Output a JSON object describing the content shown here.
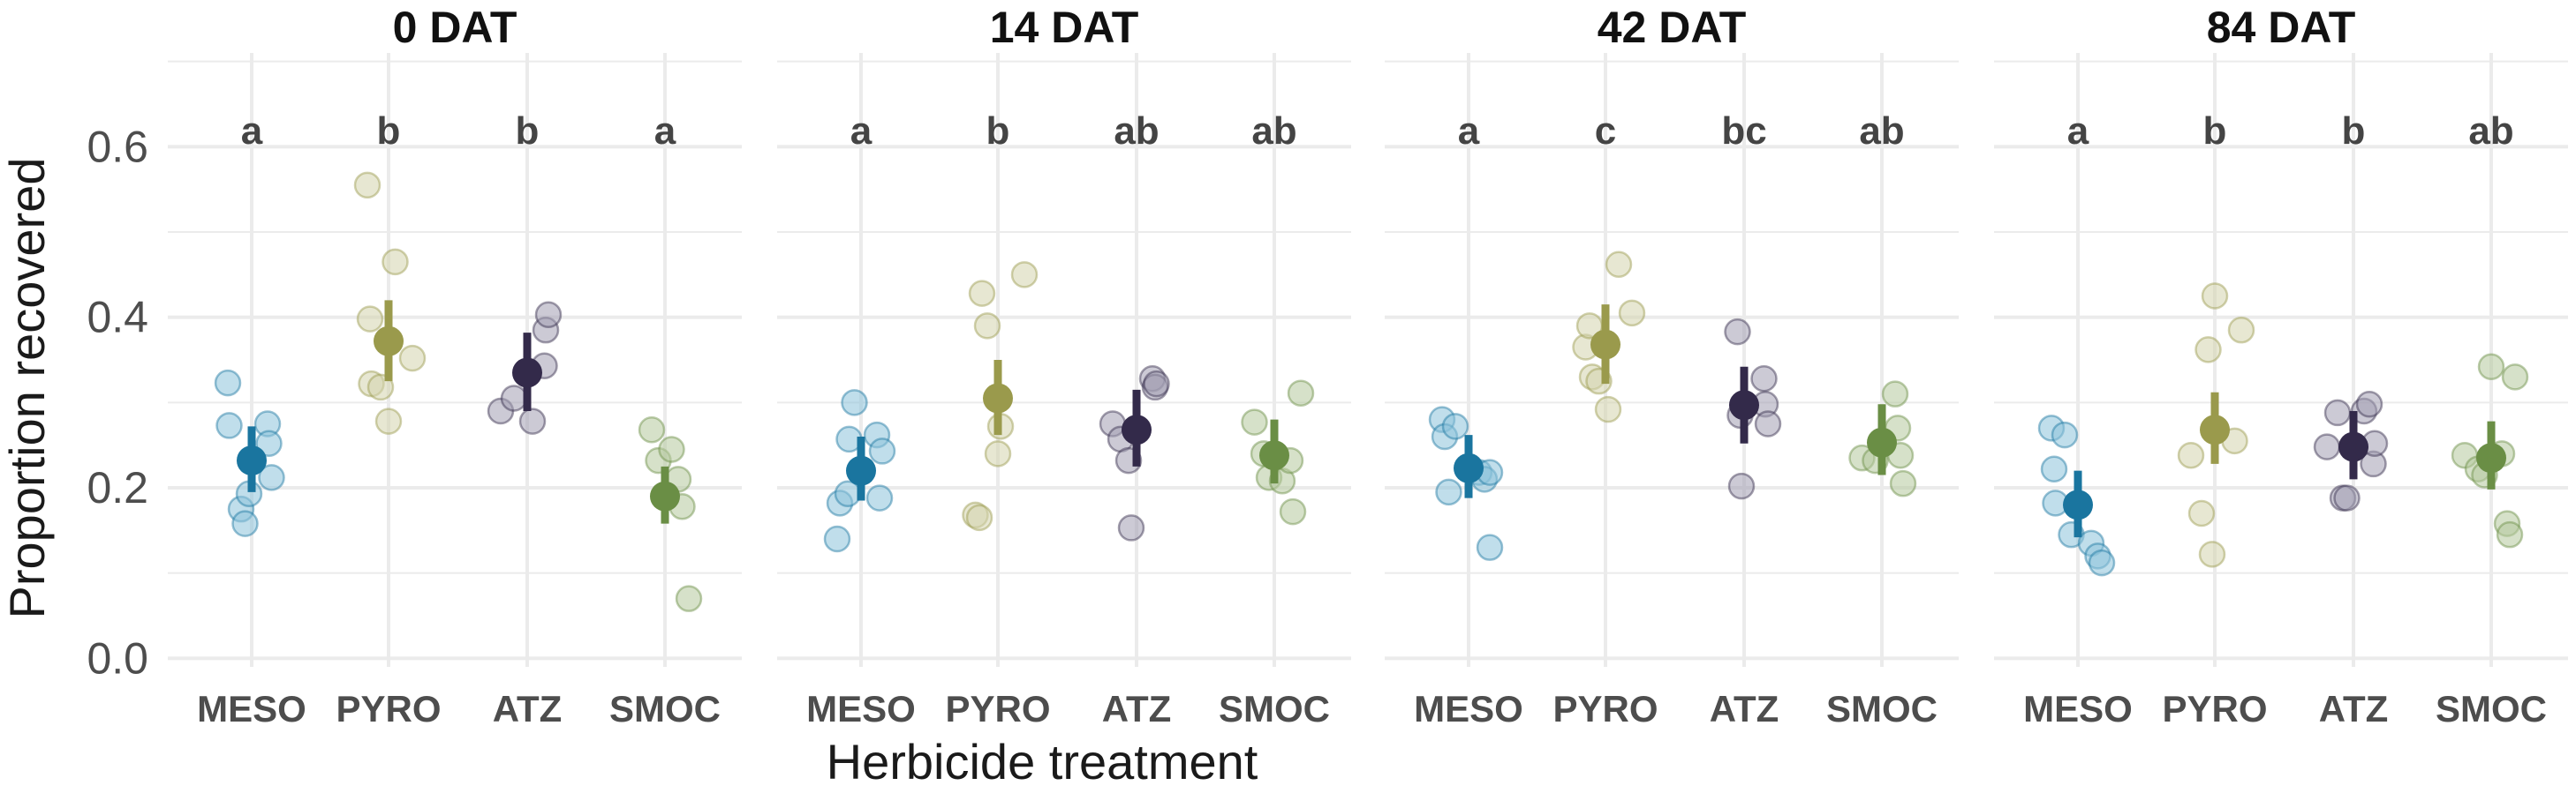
{
  "chart_data": {
    "type": "scatter",
    "subtype": "jittered points with mean and error bars, faceted",
    "ylabel": "Proportion recovered",
    "xlabel": "Herbicide treatment",
    "ylim": [
      -0.01,
      0.71
    ],
    "yticks": [
      0.0,
      0.2,
      0.4,
      0.6
    ],
    "ytick_labels": [
      "0.0",
      "0.2",
      "0.4",
      "0.6"
    ],
    "grid": true,
    "categories": [
      "MESO",
      "PYRO",
      "ATZ",
      "SMOC"
    ],
    "colors": {
      "MESO": "#1a759f",
      "PYRO": "#9a9a4c",
      "ATZ": "#332a4a",
      "SMOC": "#6a8e45"
    },
    "point_colors": {
      "MESO": "#8dc2db",
      "PYRO": "#d3d3ad",
      "ATZ": "#a39fb3",
      "SMOC": "#b5c99c"
    },
    "facets": [
      {
        "title": "0 DAT",
        "groups": [
          {
            "category": "MESO",
            "letter": "a",
            "mean": 0.232,
            "low": 0.195,
            "high": 0.272,
            "points": [
              [
                -0.18,
                0.323
              ],
              [
                -0.17,
                0.273
              ],
              [
                -0.08,
                0.175
              ],
              [
                -0.05,
                0.158
              ],
              [
                -0.02,
                0.193
              ],
              [
                0.12,
                0.275
              ],
              [
                0.13,
                0.252
              ],
              [
                0.15,
                0.212
              ]
            ]
          },
          {
            "category": "PYRO",
            "letter": "b",
            "mean": 0.372,
            "low": 0.325,
            "high": 0.42,
            "points": [
              [
                -0.16,
                0.555
              ],
              [
                -0.14,
                0.398
              ],
              [
                -0.13,
                0.322
              ],
              [
                -0.06,
                0.318
              ],
              [
                0.0,
                0.278
              ],
              [
                0.05,
                0.465
              ],
              [
                0.18,
                0.352
              ]
            ]
          },
          {
            "category": "ATZ",
            "letter": "b",
            "mean": 0.335,
            "low": 0.29,
            "high": 0.382,
            "points": [
              [
                -0.2,
                0.29
              ],
              [
                -0.1,
                0.305
              ],
              [
                0.04,
                0.278
              ],
              [
                0.13,
                0.343
              ],
              [
                0.14,
                0.385
              ],
              [
                0.16,
                0.403
              ]
            ]
          },
          {
            "category": "SMOC",
            "letter": "a",
            "mean": 0.19,
            "low": 0.158,
            "high": 0.225,
            "points": [
              [
                -0.1,
                0.268
              ],
              [
                -0.05,
                0.232
              ],
              [
                0.05,
                0.245
              ],
              [
                0.1,
                0.21
              ],
              [
                0.13,
                0.178
              ],
              [
                0.18,
                0.07
              ]
            ]
          }
        ]
      },
      {
        "title": "14 DAT",
        "groups": [
          {
            "category": "MESO",
            "letter": "a",
            "mean": 0.22,
            "low": 0.185,
            "high": 0.26,
            "points": [
              [
                -0.18,
                0.14
              ],
              [
                -0.16,
                0.182
              ],
              [
                -0.1,
                0.193
              ],
              [
                -0.09,
                0.257
              ],
              [
                -0.05,
                0.3
              ],
              [
                0.12,
                0.262
              ],
              [
                0.14,
                0.188
              ],
              [
                0.16,
                0.243
              ]
            ]
          },
          {
            "category": "PYRO",
            "letter": "b",
            "mean": 0.305,
            "low": 0.262,
            "high": 0.35,
            "points": [
              [
                -0.17,
                0.168
              ],
              [
                -0.14,
                0.165
              ],
              [
                -0.12,
                0.428
              ],
              [
                -0.08,
                0.39
              ],
              [
                0.0,
                0.24
              ],
              [
                0.02,
                0.272
              ],
              [
                0.2,
                0.45
              ]
            ]
          },
          {
            "category": "ATZ",
            "letter": "ab",
            "mean": 0.268,
            "low": 0.225,
            "high": 0.315,
            "points": [
              [
                -0.18,
                0.275
              ],
              [
                -0.12,
                0.257
              ],
              [
                -0.06,
                0.232
              ],
              [
                -0.04,
                0.153
              ],
              [
                0.12,
                0.328
              ],
              [
                0.14,
                0.318
              ],
              [
                0.15,
                0.322
              ]
            ]
          },
          {
            "category": "SMOC",
            "letter": "ab",
            "mean": 0.238,
            "low": 0.205,
            "high": 0.28,
            "points": [
              [
                -0.15,
                0.277
              ],
              [
                -0.08,
                0.24
              ],
              [
                -0.04,
                0.212
              ],
              [
                0.06,
                0.208
              ],
              [
                0.12,
                0.232
              ],
              [
                0.14,
                0.172
              ],
              [
                0.2,
                0.311
              ]
            ]
          }
        ]
      },
      {
        "title": "42 DAT",
        "groups": [
          {
            "category": "MESO",
            "letter": "a",
            "mean": 0.223,
            "low": 0.188,
            "high": 0.262,
            "points": [
              [
                -0.2,
                0.28
              ],
              [
                -0.18,
                0.26
              ],
              [
                -0.15,
                0.195
              ],
              [
                -0.1,
                0.272
              ],
              [
                0.08,
                0.218
              ],
              [
                0.12,
                0.21
              ],
              [
                0.16,
                0.218
              ],
              [
                0.16,
                0.13
              ]
            ]
          },
          {
            "category": "PYRO",
            "letter": "c",
            "mean": 0.368,
            "low": 0.322,
            "high": 0.415,
            "points": [
              [
                -0.15,
                0.365
              ],
              [
                -0.12,
                0.39
              ],
              [
                -0.1,
                0.33
              ],
              [
                -0.05,
                0.325
              ],
              [
                0.02,
                0.292
              ],
              [
                0.1,
                0.462
              ],
              [
                0.2,
                0.405
              ]
            ]
          },
          {
            "category": "ATZ",
            "letter": "bc",
            "mean": 0.297,
            "low": 0.252,
            "high": 0.342,
            "points": [
              [
                -0.05,
                0.383
              ],
              [
                -0.03,
                0.285
              ],
              [
                -0.02,
                0.202
              ],
              [
                0.15,
                0.328
              ],
              [
                0.16,
                0.298
              ],
              [
                0.18,
                0.275
              ]
            ]
          },
          {
            "category": "SMOC",
            "letter": "ab",
            "mean": 0.253,
            "low": 0.215,
            "high": 0.298,
            "points": [
              [
                -0.15,
                0.235
              ],
              [
                -0.05,
                0.232
              ],
              [
                0.1,
                0.31
              ],
              [
                0.12,
                0.27
              ],
              [
                0.14,
                0.238
              ],
              [
                0.16,
                0.205
              ]
            ]
          }
        ]
      },
      {
        "title": "84 DAT",
        "groups": [
          {
            "category": "MESO",
            "letter": "a",
            "mean": 0.18,
            "low": 0.142,
            "high": 0.22,
            "points": [
              [
                -0.2,
                0.27
              ],
              [
                -0.18,
                0.222
              ],
              [
                -0.17,
                0.182
              ],
              [
                -0.1,
                0.262
              ],
              [
                -0.05,
                0.145
              ],
              [
                0.1,
                0.135
              ],
              [
                0.15,
                0.12
              ],
              [
                0.18,
                0.112
              ]
            ]
          },
          {
            "category": "PYRO",
            "letter": "b",
            "mean": 0.268,
            "low": 0.228,
            "high": 0.312,
            "points": [
              [
                -0.18,
                0.238
              ],
              [
                -0.1,
                0.17
              ],
              [
                -0.05,
                0.362
              ],
              [
                -0.02,
                0.122
              ],
              [
                0.0,
                0.425
              ],
              [
                0.15,
                0.255
              ],
              [
                0.2,
                0.385
              ]
            ]
          },
          {
            "category": "ATZ",
            "letter": "b",
            "mean": 0.248,
            "low": 0.21,
            "high": 0.29,
            "points": [
              [
                -0.2,
                0.248
              ],
              [
                -0.12,
                0.288
              ],
              [
                -0.08,
                0.188
              ],
              [
                -0.05,
                0.188
              ],
              [
                0.08,
                0.29
              ],
              [
                0.12,
                0.298
              ],
              [
                0.15,
                0.228
              ],
              [
                0.16,
                0.252
              ]
            ]
          },
          {
            "category": "SMOC",
            "letter": "ab",
            "mean": 0.235,
            "low": 0.198,
            "high": 0.278,
            "points": [
              [
                -0.2,
                0.238
              ],
              [
                -0.1,
                0.222
              ],
              [
                -0.05,
                0.215
              ],
              [
                0.0,
                0.342
              ],
              [
                0.08,
                0.24
              ],
              [
                0.12,
                0.158
              ],
              [
                0.14,
                0.145
              ],
              [
                0.18,
                0.33
              ]
            ]
          }
        ]
      }
    ]
  }
}
